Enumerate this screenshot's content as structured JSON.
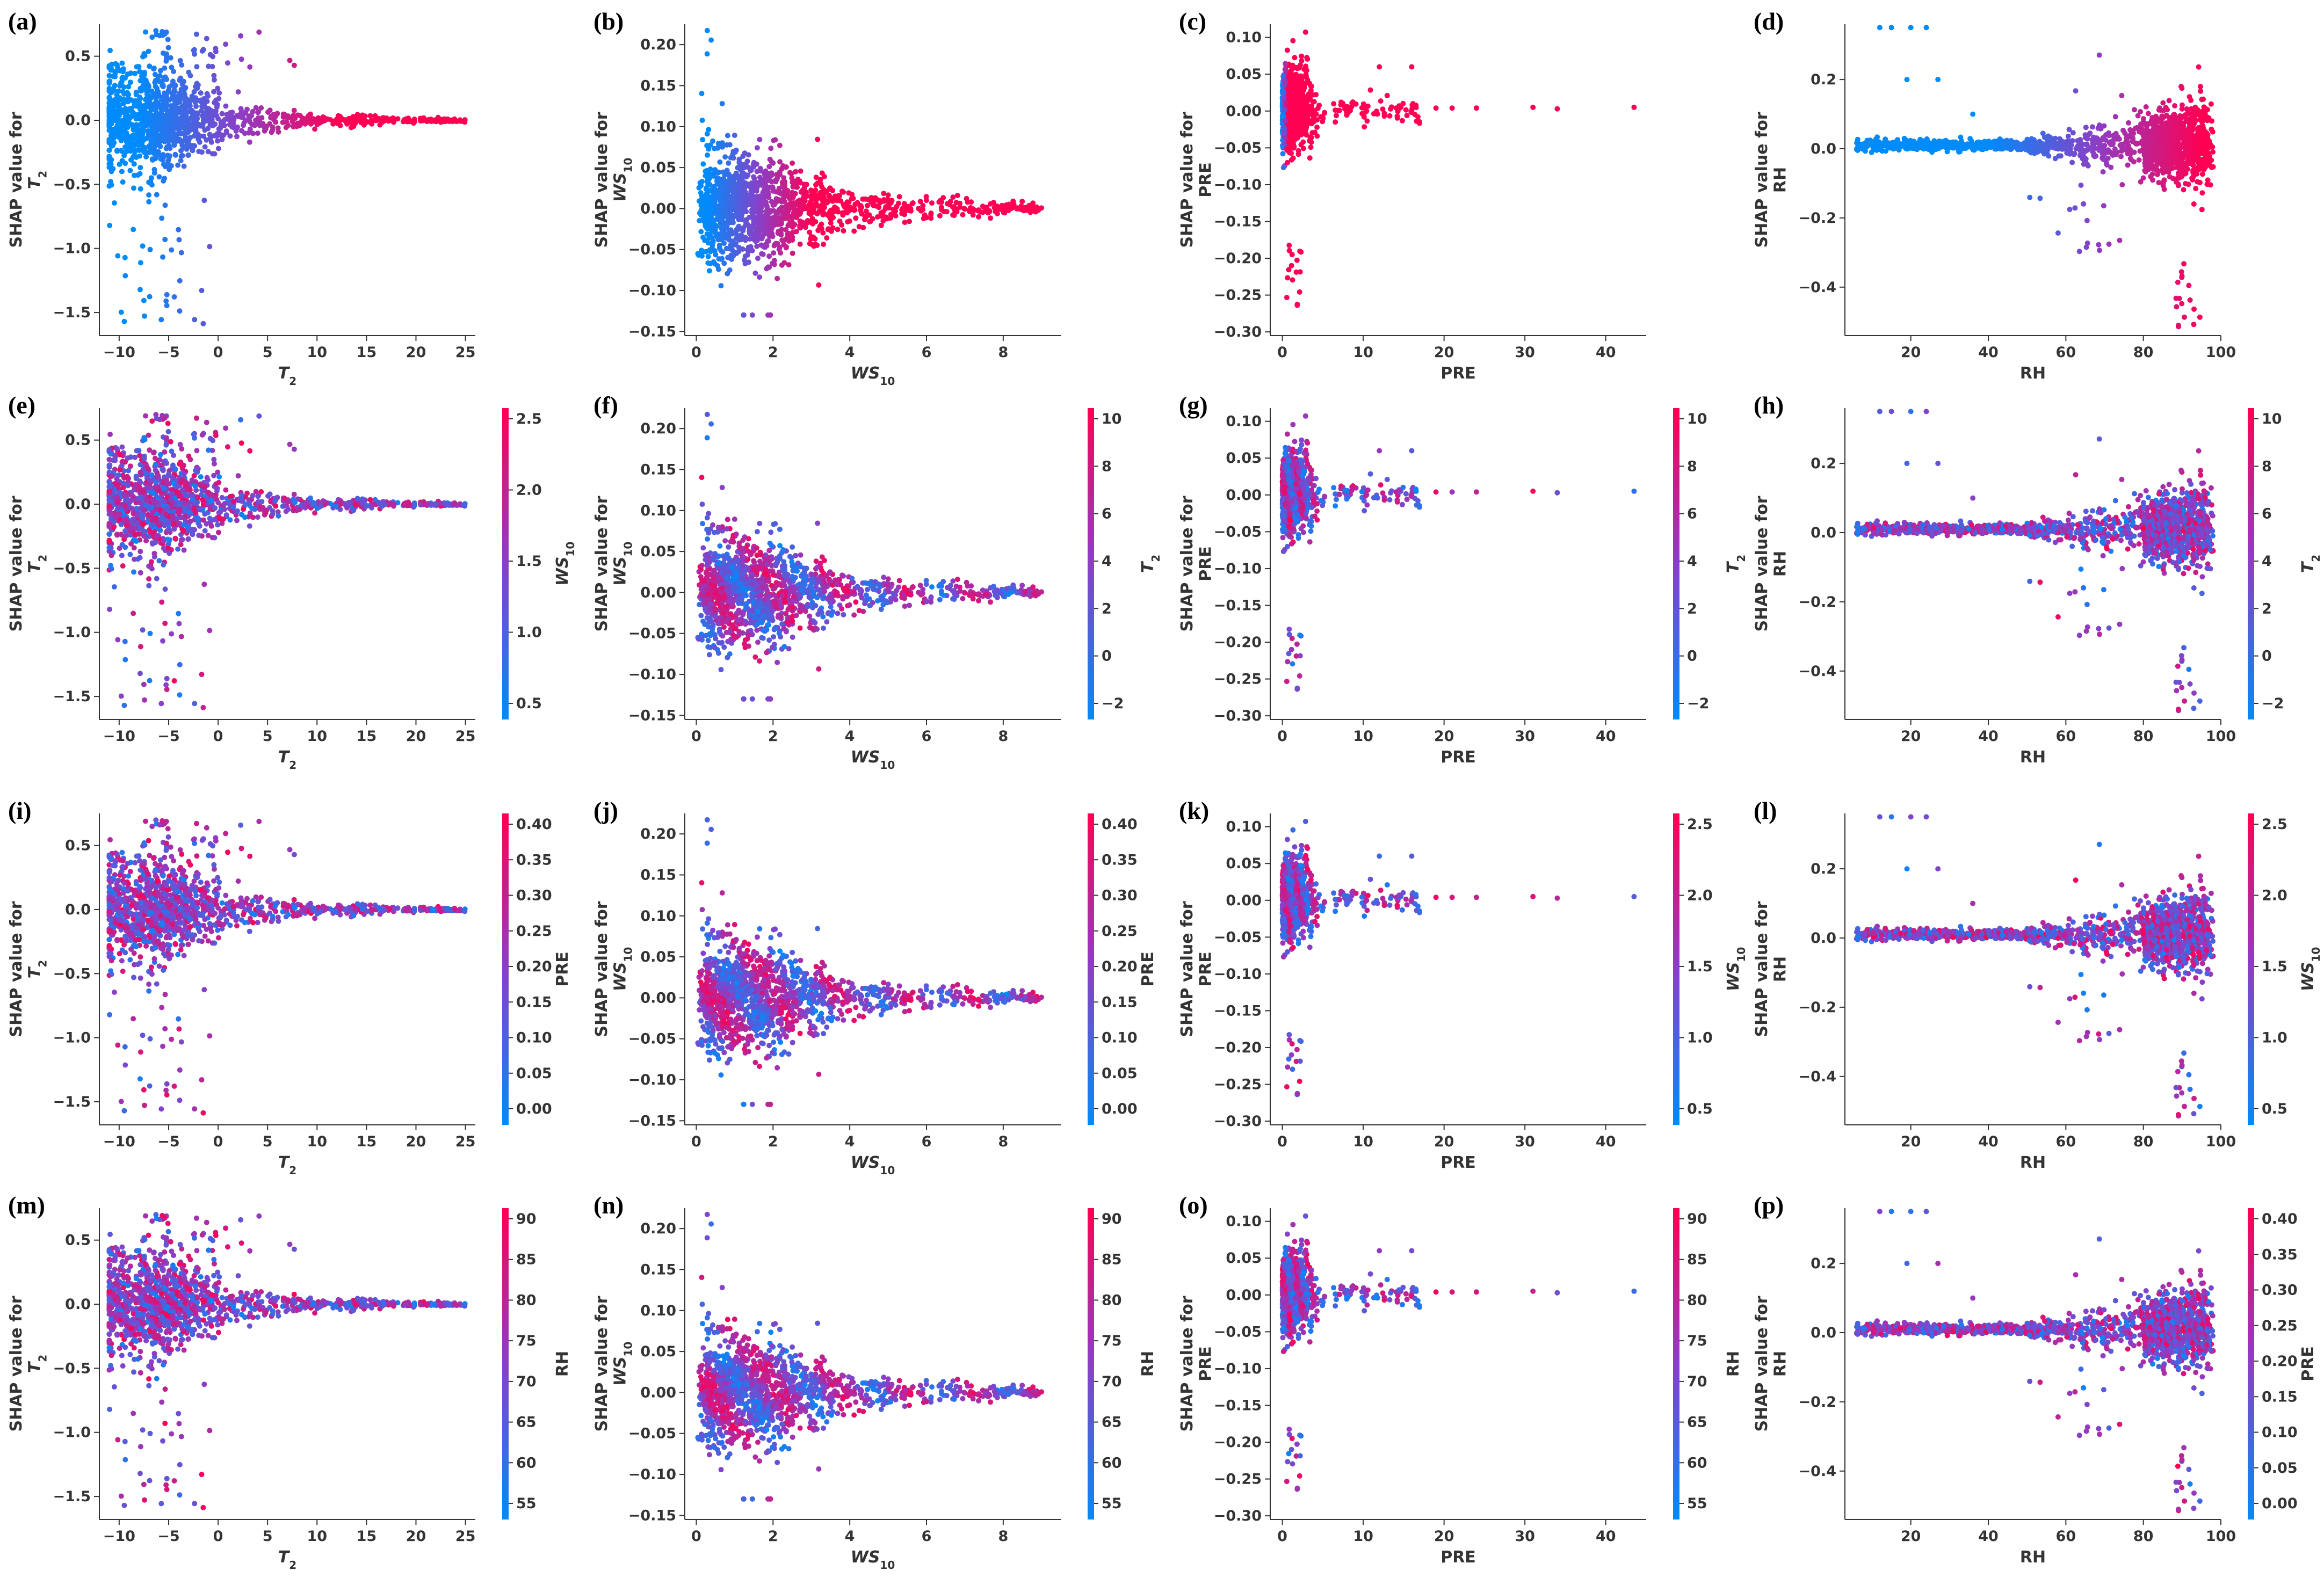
{
  "colors": {
    "low": "#008bfb",
    "mid": "#8a3fc7",
    "high": "#ff0052"
  },
  "ylabel_prefix": "SHAP value for",
  "feature_labels": {
    "T2": {
      "base": "T",
      "sub": "2",
      "italic": true
    },
    "WS10": {
      "base": "WS",
      "sub": "10",
      "italic": true
    },
    "PRE": {
      "base": "PRE",
      "sub": "",
      "italic": false
    },
    "RH": {
      "base": "RH",
      "sub": "",
      "italic": false
    }
  },
  "chart_data": [
    {
      "letter": "(a)",
      "type": "scatter",
      "x_feature": "T2",
      "color_feature": "T2",
      "colorbar": false,
      "xlim": [
        -12,
        26
      ],
      "ylim": [
        -1.68,
        0.75
      ],
      "xticks": [
        "-10",
        "-5",
        "0",
        "5",
        "10",
        "15",
        "20",
        "25"
      ],
      "yticks": [
        "0.5",
        "0.0",
        "-0.5",
        "-1.0",
        "-1.5"
      ]
    },
    {
      "letter": "(b)",
      "type": "scatter",
      "x_feature": "WS10",
      "color_feature": "WS10",
      "colorbar": false,
      "xlim": [
        -0.3,
        9.5
      ],
      "ylim": [
        -0.155,
        0.225
      ],
      "xticks": [
        "0",
        "2",
        "4",
        "6",
        "8"
      ],
      "yticks": [
        "0.20",
        "0.15",
        "0.10",
        "0.05",
        "0.00",
        "-0.05",
        "-0.10",
        "-0.15"
      ]
    },
    {
      "letter": "(c)",
      "type": "scatter",
      "x_feature": "PRE",
      "color_feature": "PRE",
      "colorbar": false,
      "xlim": [
        -1.5,
        45
      ],
      "ylim": [
        -0.305,
        0.118
      ],
      "xticks": [
        "0",
        "10",
        "20",
        "30",
        "40"
      ],
      "yticks": [
        "0.10",
        "0.05",
        "0.00",
        "-0.05",
        "-0.10",
        "-0.15",
        "-0.20",
        "-0.25",
        "-0.30"
      ]
    },
    {
      "letter": "(d)",
      "type": "scatter",
      "x_feature": "RH",
      "color_feature": "RH",
      "colorbar": false,
      "xlim": [
        3,
        100
      ],
      "ylim": [
        -0.54,
        0.36
      ],
      "xticks": [
        "20",
        "40",
        "60",
        "80",
        "100"
      ],
      "yticks": [
        "0.2",
        "0.0",
        "-0.2",
        "-0.4"
      ]
    },
    {
      "letter": "(e)",
      "type": "scatter",
      "x_feature": "T2",
      "color_feature": "WS10",
      "colorbar": true,
      "cbar_ticks": [
        "2.5",
        "2.0",
        "1.5",
        "1.0",
        "0.5"
      ],
      "xlim": [
        -12,
        26
      ],
      "ylim": [
        -1.68,
        0.75
      ],
      "xticks": [
        "-10",
        "-5",
        "0",
        "5",
        "10",
        "15",
        "20",
        "25"
      ],
      "yticks": [
        "0.5",
        "0.0",
        "-0.5",
        "-1.0",
        "-1.5"
      ]
    },
    {
      "letter": "(f)",
      "type": "scatter",
      "x_feature": "WS10",
      "color_feature": "T2",
      "colorbar": true,
      "cbar_ticks": [
        "10",
        "8",
        "6",
        "4",
        "2",
        "0",
        "-2"
      ],
      "xlim": [
        -0.3,
        9.5
      ],
      "ylim": [
        -0.155,
        0.225
      ],
      "xticks": [
        "0",
        "2",
        "4",
        "6",
        "8"
      ],
      "yticks": [
        "0.20",
        "0.15",
        "0.10",
        "0.05",
        "0.00",
        "-0.05",
        "-0.10",
        "-0.15"
      ]
    },
    {
      "letter": "(g)",
      "type": "scatter",
      "x_feature": "PRE",
      "color_feature": "T2",
      "colorbar": true,
      "cbar_ticks": [
        "10",
        "8",
        "6",
        "4",
        "2",
        "0",
        "-2"
      ],
      "xlim": [
        -1.5,
        45
      ],
      "ylim": [
        -0.305,
        0.118
      ],
      "xticks": [
        "0",
        "10",
        "20",
        "30",
        "40"
      ],
      "yticks": [
        "0.10",
        "0.05",
        "0.00",
        "-0.05",
        "-0.10",
        "-0.15",
        "-0.20",
        "-0.25",
        "-0.30"
      ]
    },
    {
      "letter": "(h)",
      "type": "scatter",
      "x_feature": "RH",
      "color_feature": "T2",
      "colorbar": true,
      "cbar_ticks": [
        "10",
        "8",
        "6",
        "4",
        "2",
        "0",
        "-2"
      ],
      "xlim": [
        3,
        100
      ],
      "ylim": [
        -0.54,
        0.36
      ],
      "xticks": [
        "20",
        "40",
        "60",
        "80",
        "100"
      ],
      "yticks": [
        "0.2",
        "0.0",
        "-0.2",
        "-0.4"
      ]
    },
    {
      "letter": "(i)",
      "type": "scatter",
      "x_feature": "T2",
      "color_feature": "PRE",
      "colorbar": true,
      "cbar_ticks": [
        "0.40",
        "0.35",
        "0.30",
        "0.25",
        "0.20",
        "0.15",
        "0.10",
        "0.05",
        "0.00"
      ],
      "xlim": [
        -12,
        26
      ],
      "ylim": [
        -1.68,
        0.75
      ],
      "xticks": [
        "-10",
        "-5",
        "0",
        "5",
        "10",
        "15",
        "20",
        "25"
      ],
      "yticks": [
        "0.5",
        "0.0",
        "-0.5",
        "-1.0",
        "-1.5"
      ]
    },
    {
      "letter": "(j)",
      "type": "scatter",
      "x_feature": "WS10",
      "color_feature": "PRE",
      "colorbar": true,
      "cbar_ticks": [
        "0.40",
        "0.35",
        "0.30",
        "0.25",
        "0.20",
        "0.15",
        "0.10",
        "0.05",
        "0.00"
      ],
      "xlim": [
        -0.3,
        9.5
      ],
      "ylim": [
        -0.155,
        0.225
      ],
      "xticks": [
        "0",
        "2",
        "4",
        "6",
        "8"
      ],
      "yticks": [
        "0.20",
        "0.15",
        "0.10",
        "0.05",
        "0.00",
        "-0.05",
        "-0.10",
        "-0.15"
      ]
    },
    {
      "letter": "(k)",
      "type": "scatter",
      "x_feature": "PRE",
      "color_feature": "WS10",
      "colorbar": true,
      "cbar_ticks": [
        "2.5",
        "2.0",
        "1.5",
        "1.0",
        "0.5"
      ],
      "xlim": [
        -1.5,
        45
      ],
      "ylim": [
        -0.305,
        0.118
      ],
      "xticks": [
        "0",
        "10",
        "20",
        "30",
        "40"
      ],
      "yticks": [
        "0.10",
        "0.05",
        "0.00",
        "-0.05",
        "-0.10",
        "-0.15",
        "-0.20",
        "-0.25",
        "-0.30"
      ]
    },
    {
      "letter": "(l)",
      "type": "scatter",
      "x_feature": "RH",
      "color_feature": "WS10",
      "colorbar": true,
      "cbar_ticks": [
        "2.5",
        "2.0",
        "1.5",
        "1.0",
        "0.5"
      ],
      "xlim": [
        3,
        100
      ],
      "ylim": [
        -0.54,
        0.36
      ],
      "xticks": [
        "20",
        "40",
        "60",
        "80",
        "100"
      ],
      "yticks": [
        "0.2",
        "0.0",
        "-0.2",
        "-0.4"
      ]
    },
    {
      "letter": "(m)",
      "type": "scatter",
      "x_feature": "T2",
      "color_feature": "RH",
      "colorbar": true,
      "cbar_ticks": [
        "90",
        "85",
        "80",
        "75",
        "70",
        "65",
        "60",
        "55"
      ],
      "xlim": [
        -12,
        26
      ],
      "ylim": [
        -1.68,
        0.75
      ],
      "xticks": [
        "-10",
        "-5",
        "0",
        "5",
        "10",
        "15",
        "20",
        "25"
      ],
      "yticks": [
        "0.5",
        "0.0",
        "-0.5",
        "-1.0",
        "-1.5"
      ]
    },
    {
      "letter": "(n)",
      "type": "scatter",
      "x_feature": "WS10",
      "color_feature": "RH",
      "colorbar": true,
      "cbar_ticks": [
        "90",
        "85",
        "80",
        "75",
        "70",
        "65",
        "60",
        "55"
      ],
      "xlim": [
        -0.3,
        9.5
      ],
      "ylim": [
        -0.155,
        0.225
      ],
      "xticks": [
        "0",
        "2",
        "4",
        "6",
        "8"
      ],
      "yticks": [
        "0.20",
        "0.15",
        "0.10",
        "0.05",
        "0.00",
        "-0.05",
        "-0.10",
        "-0.15"
      ]
    },
    {
      "letter": "(o)",
      "type": "scatter",
      "x_feature": "PRE",
      "color_feature": "RH",
      "colorbar": true,
      "cbar_ticks": [
        "90",
        "85",
        "80",
        "75",
        "70",
        "65",
        "60",
        "55"
      ],
      "xlim": [
        -1.5,
        45
      ],
      "ylim": [
        -0.305,
        0.118
      ],
      "xticks": [
        "0",
        "10",
        "20",
        "30",
        "40"
      ],
      "yticks": [
        "0.10",
        "0.05",
        "0.00",
        "-0.05",
        "-0.10",
        "-0.15",
        "-0.20",
        "-0.25",
        "-0.30"
      ]
    },
    {
      "letter": "(p)",
      "type": "scatter",
      "x_feature": "RH",
      "color_feature": "PRE",
      "colorbar": true,
      "cbar_ticks": [
        "0.40",
        "0.35",
        "0.30",
        "0.25",
        "0.20",
        "0.15",
        "0.10",
        "0.05",
        "0.00"
      ],
      "xlim": [
        3,
        100
      ],
      "ylim": [
        -0.54,
        0.36
      ],
      "xticks": [
        "20",
        "40",
        "60",
        "80",
        "100"
      ],
      "yticks": [
        "0.2",
        "0.0",
        "-0.2",
        "-0.4"
      ]
    }
  ]
}
